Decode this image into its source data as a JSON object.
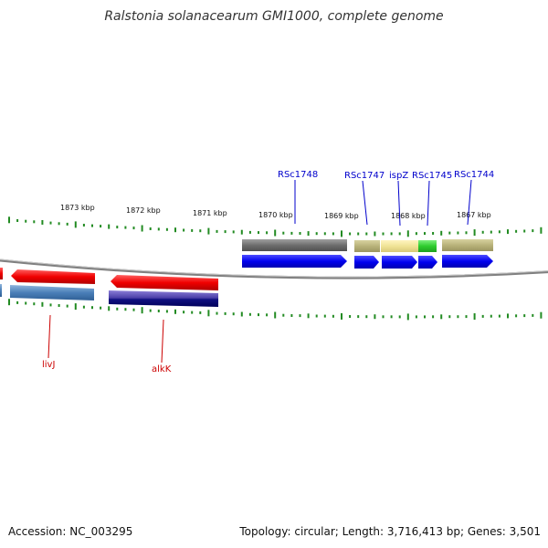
{
  "title": "Ralstonia solanacearum GMI1000, complete genome",
  "footer": {
    "accession": "Accession: NC_003295",
    "summary": "Topology: circular; Length: 3,716,413 bp; Genes: 3,501"
  },
  "scale_labels": [
    "1873 kbp",
    "1872 kbp",
    "1871 kbp",
    "1870 kbp",
    "1869 kbp",
    "1868 kbp",
    "1867 kbp"
  ],
  "gene_labels": {
    "RSc1748": "RSc1748",
    "RSc1747": "RSc1747",
    "ispZ": "ispZ",
    "RSc1745": "RSc1745",
    "RSc1744": "RSc1744",
    "livJ": "livJ",
    "alkK": "alkK"
  },
  "colors": {
    "forward_label": "#0000cc",
    "reverse_label": "#cc0000",
    "ticks": "#228b22",
    "backbone": "#808080"
  }
}
